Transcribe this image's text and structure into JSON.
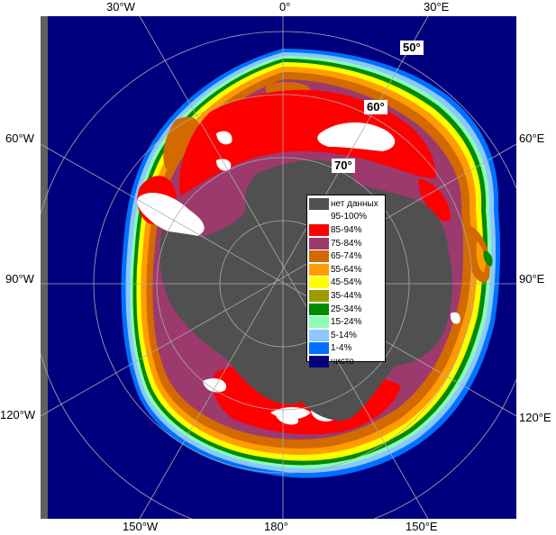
{
  "colors": {
    "open_water": "#00007f",
    "no_data": "#505050",
    "land_bg": "#606060"
  },
  "graticule": {
    "longitude_labels": {
      "w30": "30°W",
      "zero": "0°",
      "e30": "30°E",
      "w60": "60°W",
      "e60": "60°E",
      "w90": "90°W",
      "e90": "90°E",
      "w120": "120°W",
      "e120": "120°E",
      "w150": "150°W",
      "lon180": "180°",
      "e150": "150°E"
    },
    "latitude_labels": {
      "lat50": "50°",
      "lat60": "60°",
      "lat70": "70°"
    }
  },
  "legend": [
    {
      "label": "нет данных",
      "color": "#505050"
    },
    {
      "label": "95-100%",
      "color": "#ffffff"
    },
    {
      "label": "85-94%",
      "color": "#ff0000"
    },
    {
      "label": "75-84%",
      "color": "#9c3a6e"
    },
    {
      "label": "65-74%",
      "color": "#d26a00"
    },
    {
      "label": "55-64%",
      "color": "#ff9c00"
    },
    {
      "label": "45-54%",
      "color": "#ffff00"
    },
    {
      "label": "35-44%",
      "color": "#9c9c00"
    },
    {
      "label": "25-34%",
      "color": "#008a00"
    },
    {
      "label": "15-24%",
      "color": "#8affb4"
    },
    {
      "label": "5-14%",
      "color": "#8ac8ff"
    },
    {
      "label": "1-4%",
      "color": "#0070ff"
    },
    {
      "label": "чисто",
      "color": "#00007f"
    }
  ]
}
